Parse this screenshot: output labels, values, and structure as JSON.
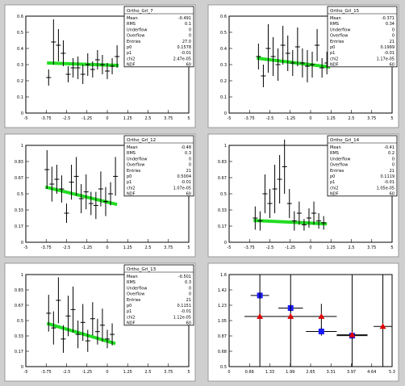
{
  "chart_data": [
    {
      "type": "scatter",
      "title": "",
      "panel_label": "Ortho_Grl_7",
      "stats": [
        {
          "label": "Mean",
          "value": "-0.491"
        },
        {
          "label": "RMS",
          "value": "0.1"
        },
        {
          "label": "Underflow",
          "value": "0"
        },
        {
          "label": "Overflow",
          "value": "0"
        },
        {
          "label": "Entries",
          "value": "27.0"
        },
        {
          "label": "p0",
          "value": "0.1578"
        },
        {
          "label": "p1",
          "value": "-0.01"
        },
        {
          "label": "chi2",
          "value": "2.47e-05"
        },
        {
          "label": "NDF",
          "value": "60"
        }
      ],
      "xlim": [
        -5,
        5
      ],
      "ylim": [
        0,
        0.6
      ],
      "points": [
        {
          "x": -3.6,
          "y": 0.22,
          "yerr": 0.05
        },
        {
          "x": -3.3,
          "y": 0.44,
          "yerr": 0.14
        },
        {
          "x": -3.0,
          "y": 0.42,
          "yerr": 0.1
        },
        {
          "x": -2.7,
          "y": 0.37,
          "yerr": 0.08
        },
        {
          "x": -2.4,
          "y": 0.24,
          "yerr": 0.05
        },
        {
          "x": -2.1,
          "y": 0.28,
          "yerr": 0.06
        },
        {
          "x": -1.8,
          "y": 0.28,
          "yerr": 0.07
        },
        {
          "x": -1.5,
          "y": 0.24,
          "yerr": 0.06
        },
        {
          "x": -1.2,
          "y": 0.3,
          "yerr": 0.07
        },
        {
          "x": -0.9,
          "y": 0.27,
          "yerr": 0.05
        },
        {
          "x": -0.6,
          "y": 0.33,
          "yerr": 0.06
        },
        {
          "x": -0.3,
          "y": 0.3,
          "yerr": 0.06
        },
        {
          "x": 0.0,
          "y": 0.26,
          "yerr": 0.05
        },
        {
          "x": 0.3,
          "y": 0.29,
          "yerr": 0.05
        },
        {
          "x": 0.6,
          "y": 0.35,
          "yerr": 0.07
        }
      ],
      "fit": {
        "x1": -3.7,
        "y1": 0.31,
        "x2": 0.7,
        "y2": 0.295
      }
    },
    {
      "type": "scatter",
      "title": "",
      "panel_label": "Ortho_Grl_15",
      "stats": [
        {
          "label": "Mean",
          "value": "-0.371"
        },
        {
          "label": "RMS",
          "value": "0.34"
        },
        {
          "label": "Underflow",
          "value": "0"
        },
        {
          "label": "Overflow",
          "value": "0"
        },
        {
          "label": "Entries",
          "value": "21"
        },
        {
          "label": "p0",
          "value": "0.1999"
        },
        {
          "label": "p1",
          "value": "-0.01"
        },
        {
          "label": "chi2",
          "value": "1.17e-05"
        },
        {
          "label": "NDF",
          "value": "60"
        }
      ],
      "xlim": [
        -5,
        5
      ],
      "ylim": [
        0,
        0.6
      ],
      "points": [
        {
          "x": -3.2,
          "y": 0.35,
          "yerr": 0.08
        },
        {
          "x": -2.9,
          "y": 0.23,
          "yerr": 0.07
        },
        {
          "x": -2.6,
          "y": 0.4,
          "yerr": 0.15
        },
        {
          "x": -2.3,
          "y": 0.35,
          "yerr": 0.12
        },
        {
          "x": -2.0,
          "y": 0.3,
          "yerr": 0.1
        },
        {
          "x": -1.7,
          "y": 0.42,
          "yerr": 0.12
        },
        {
          "x": -1.4,
          "y": 0.37,
          "yerr": 0.11
        },
        {
          "x": -1.1,
          "y": 0.31,
          "yerr": 0.08
        },
        {
          "x": -0.8,
          "y": 0.41,
          "yerr": 0.12
        },
        {
          "x": -0.5,
          "y": 0.31,
          "yerr": 0.09
        },
        {
          "x": -0.2,
          "y": 0.29,
          "yerr": 0.1
        },
        {
          "x": 0.1,
          "y": 0.3,
          "yerr": 0.08
        },
        {
          "x": 0.4,
          "y": 0.42,
          "yerr": 0.1
        },
        {
          "x": 0.7,
          "y": 0.28,
          "yerr": 0.06
        },
        {
          "x": 1.0,
          "y": 0.31,
          "yerr": 0.07
        }
      ],
      "fit": {
        "x1": -3.3,
        "y1": 0.34,
        "x2": 1.2,
        "y2": 0.285
      }
    },
    {
      "type": "scatter",
      "title": "",
      "panel_label": "Ortho_Grl_12",
      "stats": [
        {
          "label": "Mean",
          "value": "-0.48"
        },
        {
          "label": "RMS",
          "value": "0.3"
        },
        {
          "label": "Underflow",
          "value": "0"
        },
        {
          "label": "Overflow",
          "value": "0"
        },
        {
          "label": "Entries",
          "value": "21"
        },
        {
          "label": "p0",
          "value": "0.5004"
        },
        {
          "label": "p1",
          "value": "-0.01"
        },
        {
          "label": "chi2",
          "value": "1.07e-05"
        },
        {
          "label": "NDF",
          "value": "60"
        }
      ],
      "xlim": [
        -5,
        5
      ],
      "ylim": [
        0,
        1.0
      ],
      "points": [
        {
          "x": -3.7,
          "y": 0.75,
          "yerr": 0.2
        },
        {
          "x": -3.4,
          "y": 0.6,
          "yerr": 0.18
        },
        {
          "x": -3.1,
          "y": 0.65,
          "yerr": 0.15
        },
        {
          "x": -2.8,
          "y": 0.55,
          "yerr": 0.14
        },
        {
          "x": -2.5,
          "y": 0.3,
          "yerr": 0.1
        },
        {
          "x": -2.2,
          "y": 0.62,
          "yerr": 0.18
        },
        {
          "x": -1.9,
          "y": 0.68,
          "yerr": 0.2
        },
        {
          "x": -1.6,
          "y": 0.45,
          "yerr": 0.15
        },
        {
          "x": -1.3,
          "y": 0.52,
          "yerr": 0.18
        },
        {
          "x": -1.0,
          "y": 0.4,
          "yerr": 0.12
        },
        {
          "x": -0.7,
          "y": 0.38,
          "yerr": 0.14
        },
        {
          "x": -0.4,
          "y": 0.55,
          "yerr": 0.18
        },
        {
          "x": -0.1,
          "y": 0.42,
          "yerr": 0.15
        },
        {
          "x": 0.2,
          "y": 0.5,
          "yerr": 0.12
        },
        {
          "x": 0.5,
          "y": 0.68,
          "yerr": 0.2
        }
      ],
      "fit": {
        "x1": -3.8,
        "y1": 0.57,
        "x2": 0.6,
        "y2": 0.39
      }
    },
    {
      "type": "scatter",
      "title": "",
      "panel_label": "Ortho_Grl_14",
      "stats": [
        {
          "label": "Mean",
          "value": "-0.41"
        },
        {
          "label": "RMS",
          "value": "0.2"
        },
        {
          "label": "Underflow",
          "value": "0"
        },
        {
          "label": "Overflow",
          "value": "0"
        },
        {
          "label": "Entries",
          "value": "21"
        },
        {
          "label": "p0",
          "value": "0.1119"
        },
        {
          "label": "p1",
          "value": "-0.01"
        },
        {
          "label": "chi2",
          "value": "1.05e-05"
        },
        {
          "label": "NDF",
          "value": "60"
        }
      ],
      "xlim": [
        -5,
        5
      ],
      "ylim": [
        0,
        1.0
      ],
      "points": [
        {
          "x": -3.4,
          "y": 0.25,
          "yerr": 0.12
        },
        {
          "x": -3.1,
          "y": 0.22,
          "yerr": 0.1
        },
        {
          "x": -2.8,
          "y": 0.5,
          "yerr": 0.2
        },
        {
          "x": -2.5,
          "y": 0.4,
          "yerr": 0.15
        },
        {
          "x": -2.2,
          "y": 0.55,
          "yerr": 0.25
        },
        {
          "x": -1.9,
          "y": 0.65,
          "yerr": 0.25
        },
        {
          "x": -1.6,
          "y": 0.78,
          "yerr": 0.28
        },
        {
          "x": -1.3,
          "y": 0.4,
          "yerr": 0.15
        },
        {
          "x": -1.0,
          "y": 0.22,
          "yerr": 0.1
        },
        {
          "x": -0.7,
          "y": 0.3,
          "yerr": 0.12
        },
        {
          "x": -0.4,
          "y": 0.18,
          "yerr": 0.06
        },
        {
          "x": -0.1,
          "y": 0.25,
          "yerr": 0.1
        },
        {
          "x": 0.2,
          "y": 0.3,
          "yerr": 0.12
        },
        {
          "x": 0.5,
          "y": 0.22,
          "yerr": 0.08
        },
        {
          "x": 0.8,
          "y": 0.2,
          "yerr": 0.07
        }
      ],
      "fit": {
        "x1": -3.5,
        "y1": 0.225,
        "x2": 1.0,
        "y2": 0.19
      }
    },
    {
      "type": "scatter",
      "title": "",
      "panel_label": "Ortho_Grl_13",
      "stats": [
        {
          "label": "Mean",
          "value": "-0.501"
        },
        {
          "label": "RMS",
          "value": "0.3"
        },
        {
          "label": "Underflow",
          "value": "0"
        },
        {
          "label": "Overflow",
          "value": "0"
        },
        {
          "label": "Entries",
          "value": "21"
        },
        {
          "label": "p0",
          "value": "0.1151"
        },
        {
          "label": "p1",
          "value": "-0.01"
        },
        {
          "label": "chi2",
          "value": "1.12e-05"
        },
        {
          "label": "NDF",
          "value": "60"
        }
      ],
      "xlim": [
        -5,
        5
      ],
      "ylim": [
        0,
        1.0
      ],
      "points": [
        {
          "x": -3.6,
          "y": 0.58,
          "yerr": 0.2
        },
        {
          "x": -3.3,
          "y": 0.42,
          "yerr": 0.18
        },
        {
          "x": -3.0,
          "y": 0.72,
          "yerr": 0.25
        },
        {
          "x": -2.7,
          "y": 0.3,
          "yerr": 0.15
        },
        {
          "x": -2.4,
          "y": 0.55,
          "yerr": 0.22
        },
        {
          "x": -2.1,
          "y": 0.62,
          "yerr": 0.25
        },
        {
          "x": -1.8,
          "y": 0.35,
          "yerr": 0.15
        },
        {
          "x": -1.5,
          "y": 0.48,
          "yerr": 0.2
        },
        {
          "x": -1.2,
          "y": 0.28,
          "yerr": 0.12
        },
        {
          "x": -0.9,
          "y": 0.52,
          "yerr": 0.18
        },
        {
          "x": -0.6,
          "y": 0.38,
          "yerr": 0.14
        },
        {
          "x": -0.3,
          "y": 0.45,
          "yerr": 0.18
        },
        {
          "x": 0.0,
          "y": 0.3,
          "yerr": 0.1
        },
        {
          "x": 0.3,
          "y": 0.35,
          "yerr": 0.12
        }
      ],
      "fit": {
        "x1": -3.7,
        "y1": 0.47,
        "x2": 0.5,
        "y2": 0.25
      }
    },
    {
      "type": "scatter",
      "title": "",
      "panel_label": "",
      "stats": [],
      "xlim": [
        0,
        5.3
      ],
      "ylim": [
        0.5,
        1.6
      ],
      "series": [
        {
          "color": "#1a1aff",
          "marker": "square",
          "points": [
            {
              "x": 1,
              "y": 1.35,
              "xerr": 0.3,
              "yerr": 0.04
            },
            {
              "x": 2,
              "y": 1.2,
              "xerr": 0.4,
              "yerr": 0.05
            },
            {
              "x": 3,
              "y": 0.92,
              "xerr": 0.5,
              "yerr": 0.05
            },
            {
              "x": 4,
              "y": 0.87,
              "xerr": 0.5,
              "yerr": 0.05
            }
          ]
        },
        {
          "color": "#e00000",
          "marker": "triangle",
          "points": [
            {
              "x": 1,
              "y": 1.1,
              "xerr": 0.5,
              "yerr": 1.0
            },
            {
              "x": 2,
              "y": 1.1,
              "xerr": 0.5,
              "yerr": 1.0
            },
            {
              "x": 3,
              "y": 1.1,
              "xerr": 0.5,
              "yerr": 0.15
            },
            {
              "x": 4,
              "y": 0.88,
              "xerr": 0.5,
              "yerr": 0.9
            },
            {
              "x": 5,
              "y": 0.98,
              "xerr": 0.3,
              "yerr": 0.9
            }
          ]
        }
      ]
    }
  ]
}
